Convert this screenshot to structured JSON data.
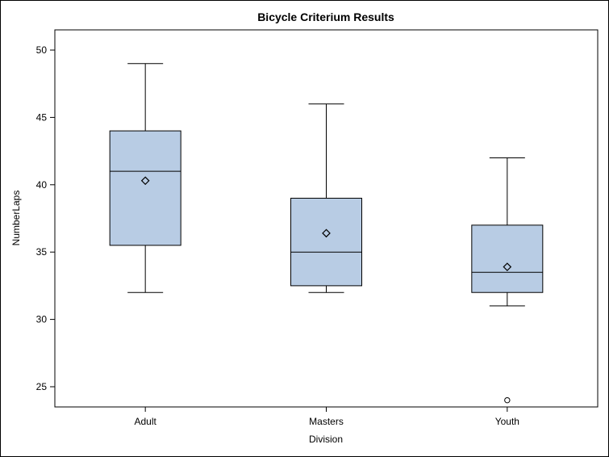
{
  "chart_data": {
    "type": "box",
    "title": "Bicycle Criterium Results",
    "xlabel": "Division",
    "ylabel": "NumberLaps",
    "ylim": [
      23.5,
      51.5
    ],
    "yticks": [
      25,
      30,
      35,
      40,
      45,
      50
    ],
    "grid": false,
    "colors": {
      "box_fill": "#b8cce4",
      "stroke": "#000000"
    },
    "categories": [
      "Adult",
      "Masters",
      "Youth"
    ],
    "boxes": [
      {
        "category": "Adult",
        "whisker_low": 32,
        "q1": 35.5,
        "median": 41,
        "q3": 44,
        "whisker_high": 49,
        "mean": 40.3,
        "outliers": []
      },
      {
        "category": "Masters",
        "whisker_low": 32,
        "q1": 32.5,
        "median": 35,
        "q3": 39,
        "whisker_high": 46,
        "mean": 36.4,
        "outliers": []
      },
      {
        "category": "Youth",
        "whisker_low": 31,
        "q1": 32,
        "median": 33.5,
        "q3": 37,
        "whisker_high": 42,
        "mean": 33.9,
        "outliers": [
          24
        ]
      }
    ]
  }
}
